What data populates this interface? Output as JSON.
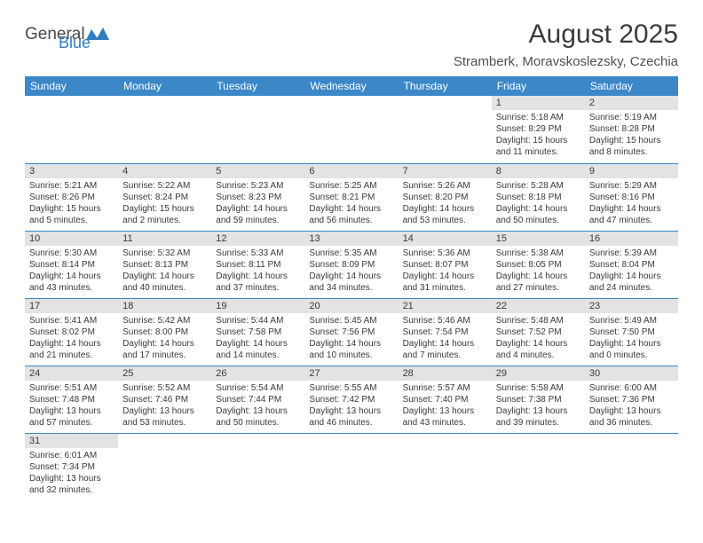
{
  "brand": {
    "part1": "General",
    "part2": "Blue"
  },
  "title": "August 2025",
  "subtitle": "Stramberk, Moravskoslezsky, Czechia",
  "colors": {
    "header_bg": "#3b87c8",
    "header_text": "#ffffff",
    "daybar_bg": "#e3e3e3",
    "text": "#3a3a3a",
    "rule": "#3b87c8",
    "logo_shape": "#2f7dc1"
  },
  "day_headers": [
    "Sunday",
    "Monday",
    "Tuesday",
    "Wednesday",
    "Thursday",
    "Friday",
    "Saturday"
  ],
  "weeks": [
    [
      null,
      null,
      null,
      null,
      null,
      {
        "num": "1",
        "sunrise": "5:18 AM",
        "sunset": "8:29 PM",
        "dl_h": "15",
        "dl_m": "11"
      },
      {
        "num": "2",
        "sunrise": "5:19 AM",
        "sunset": "8:28 PM",
        "dl_h": "15",
        "dl_m": "8"
      }
    ],
    [
      {
        "num": "3",
        "sunrise": "5:21 AM",
        "sunset": "8:26 PM",
        "dl_h": "15",
        "dl_m": "5"
      },
      {
        "num": "4",
        "sunrise": "5:22 AM",
        "sunset": "8:24 PM",
        "dl_h": "15",
        "dl_m": "2"
      },
      {
        "num": "5",
        "sunrise": "5:23 AM",
        "sunset": "8:23 PM",
        "dl_h": "14",
        "dl_m": "59"
      },
      {
        "num": "6",
        "sunrise": "5:25 AM",
        "sunset": "8:21 PM",
        "dl_h": "14",
        "dl_m": "56"
      },
      {
        "num": "7",
        "sunrise": "5:26 AM",
        "sunset": "8:20 PM",
        "dl_h": "14",
        "dl_m": "53"
      },
      {
        "num": "8",
        "sunrise": "5:28 AM",
        "sunset": "8:18 PM",
        "dl_h": "14",
        "dl_m": "50"
      },
      {
        "num": "9",
        "sunrise": "5:29 AM",
        "sunset": "8:16 PM",
        "dl_h": "14",
        "dl_m": "47"
      }
    ],
    [
      {
        "num": "10",
        "sunrise": "5:30 AM",
        "sunset": "8:14 PM",
        "dl_h": "14",
        "dl_m": "43"
      },
      {
        "num": "11",
        "sunrise": "5:32 AM",
        "sunset": "8:13 PM",
        "dl_h": "14",
        "dl_m": "40"
      },
      {
        "num": "12",
        "sunrise": "5:33 AM",
        "sunset": "8:11 PM",
        "dl_h": "14",
        "dl_m": "37"
      },
      {
        "num": "13",
        "sunrise": "5:35 AM",
        "sunset": "8:09 PM",
        "dl_h": "14",
        "dl_m": "34"
      },
      {
        "num": "14",
        "sunrise": "5:36 AM",
        "sunset": "8:07 PM",
        "dl_h": "14",
        "dl_m": "31"
      },
      {
        "num": "15",
        "sunrise": "5:38 AM",
        "sunset": "8:05 PM",
        "dl_h": "14",
        "dl_m": "27"
      },
      {
        "num": "16",
        "sunrise": "5:39 AM",
        "sunset": "8:04 PM",
        "dl_h": "14",
        "dl_m": "24"
      }
    ],
    [
      {
        "num": "17",
        "sunrise": "5:41 AM",
        "sunset": "8:02 PM",
        "dl_h": "14",
        "dl_m": "21"
      },
      {
        "num": "18",
        "sunrise": "5:42 AM",
        "sunset": "8:00 PM",
        "dl_h": "14",
        "dl_m": "17"
      },
      {
        "num": "19",
        "sunrise": "5:44 AM",
        "sunset": "7:58 PM",
        "dl_h": "14",
        "dl_m": "14"
      },
      {
        "num": "20",
        "sunrise": "5:45 AM",
        "sunset": "7:56 PM",
        "dl_h": "14",
        "dl_m": "10"
      },
      {
        "num": "21",
        "sunrise": "5:46 AM",
        "sunset": "7:54 PM",
        "dl_h": "14",
        "dl_m": "7"
      },
      {
        "num": "22",
        "sunrise": "5:48 AM",
        "sunset": "7:52 PM",
        "dl_h": "14",
        "dl_m": "4"
      },
      {
        "num": "23",
        "sunrise": "5:49 AM",
        "sunset": "7:50 PM",
        "dl_h": "14",
        "dl_m": "0"
      }
    ],
    [
      {
        "num": "24",
        "sunrise": "5:51 AM",
        "sunset": "7:48 PM",
        "dl_h": "13",
        "dl_m": "57"
      },
      {
        "num": "25",
        "sunrise": "5:52 AM",
        "sunset": "7:46 PM",
        "dl_h": "13",
        "dl_m": "53"
      },
      {
        "num": "26",
        "sunrise": "5:54 AM",
        "sunset": "7:44 PM",
        "dl_h": "13",
        "dl_m": "50"
      },
      {
        "num": "27",
        "sunrise": "5:55 AM",
        "sunset": "7:42 PM",
        "dl_h": "13",
        "dl_m": "46"
      },
      {
        "num": "28",
        "sunrise": "5:57 AM",
        "sunset": "7:40 PM",
        "dl_h": "13",
        "dl_m": "43"
      },
      {
        "num": "29",
        "sunrise": "5:58 AM",
        "sunset": "7:38 PM",
        "dl_h": "13",
        "dl_m": "39"
      },
      {
        "num": "30",
        "sunrise": "6:00 AM",
        "sunset": "7:36 PM",
        "dl_h": "13",
        "dl_m": "36"
      }
    ],
    [
      {
        "num": "31",
        "sunrise": "6:01 AM",
        "sunset": "7:34 PM",
        "dl_h": "13",
        "dl_m": "32"
      },
      null,
      null,
      null,
      null,
      null,
      null
    ]
  ]
}
